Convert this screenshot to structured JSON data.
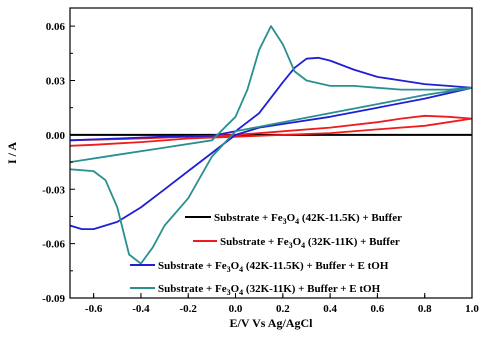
{
  "chart_data": {
    "type": "line",
    "title": "",
    "xlabel": "E/V Vs Ag/AgCl",
    "ylabel": "I / A",
    "xlim": [
      -0.7,
      1.0
    ],
    "ylim": [
      -0.09,
      0.07
    ],
    "grid": false,
    "legend_position": "bottom-right",
    "x_ticks": [
      "-0.6",
      "-0.4",
      "-0.2",
      "0.0",
      "0.2",
      "0.4",
      "0.6",
      "0.8",
      "1.0"
    ],
    "x_tick_values": [
      -0.6,
      -0.4,
      -0.2,
      0.0,
      0.2,
      0.4,
      0.6,
      0.8,
      1.0
    ],
    "y_ticks": [
      "0.06",
      "0.03",
      "0.00",
      "-0.03",
      "-0.06",
      "-0.09"
    ],
    "y_tick_values": [
      0.06,
      0.03,
      0.0,
      -0.03,
      -0.06,
      -0.09
    ],
    "series": [
      {
        "name": "Substrate + Fe3O4 (42K-11.5K) + Buffer",
        "legend": {
          "base": "Substrate + Fe",
          "sub": "3",
          "mid": "O",
          "sub2": "4",
          "tail": " (42K-11.5K) + Buffer"
        },
        "color": "#000000",
        "points": [
          [
            -0.7,
            0.0
          ],
          [
            1.0,
            0.0
          ],
          [
            1.0,
            0.0
          ],
          [
            -0.7,
            0.0
          ]
        ]
      },
      {
        "name": "Substrate + Fe3O4 (32K-11K) + Buffer",
        "legend": {
          "base": "Substrate + Fe",
          "sub": "3",
          "mid": "O",
          "sub2": "4",
          "tail": " (32K-11K) + Buffer"
        },
        "color": "#ee1c1c",
        "points": [
          [
            -0.7,
            -0.003
          ],
          [
            -0.4,
            -0.002
          ],
          [
            -0.2,
            -0.001
          ],
          [
            0.0,
            0.0
          ],
          [
            0.2,
            0.002
          ],
          [
            0.4,
            0.004
          ],
          [
            0.6,
            0.007
          ],
          [
            0.7,
            0.009
          ],
          [
            0.8,
            0.0105
          ],
          [
            0.9,
            0.01
          ],
          [
            1.0,
            0.009
          ],
          [
            0.9,
            0.007
          ],
          [
            0.8,
            0.005
          ],
          [
            0.6,
            0.003
          ],
          [
            0.4,
            0.001
          ],
          [
            0.2,
            0.0
          ],
          [
            0.0,
            -0.001
          ],
          [
            -0.2,
            -0.002
          ],
          [
            -0.4,
            -0.004
          ],
          [
            -0.6,
            -0.0055
          ],
          [
            -0.7,
            -0.006
          ]
        ]
      },
      {
        "name": "Substrate + Fe3O4 (42K-11.5K) + Buffer + EtOH",
        "legend": {
          "base": "Substrate + Fe",
          "sub": "3",
          "mid": "O",
          "sub2": "4",
          "tail": " (42K-11.5K) + Buffer + E tOH"
        },
        "color": "#1f1fd6",
        "points": [
          [
            -0.7,
            -0.003
          ],
          [
            -0.5,
            -0.002
          ],
          [
            -0.3,
            -0.001
          ],
          [
            -0.1,
            -0.0005
          ],
          [
            0.0,
            0.002
          ],
          [
            0.1,
            0.012
          ],
          [
            0.2,
            0.029
          ],
          [
            0.25,
            0.037
          ],
          [
            0.3,
            0.042
          ],
          [
            0.35,
            0.0425
          ],
          [
            0.4,
            0.041
          ],
          [
            0.5,
            0.036
          ],
          [
            0.6,
            0.032
          ],
          [
            0.7,
            0.03
          ],
          [
            0.8,
            0.028
          ],
          [
            0.9,
            0.027
          ],
          [
            1.0,
            0.026
          ],
          [
            0.8,
            0.02
          ],
          [
            0.6,
            0.015
          ],
          [
            0.4,
            0.01
          ],
          [
            0.2,
            0.006
          ],
          [
            0.1,
            0.004
          ],
          [
            0.0,
            0.0
          ],
          [
            -0.05,
            -0.005
          ],
          [
            -0.1,
            -0.01
          ],
          [
            -0.2,
            -0.02
          ],
          [
            -0.3,
            -0.03
          ],
          [
            -0.4,
            -0.04
          ],
          [
            -0.5,
            -0.048
          ],
          [
            -0.6,
            -0.052
          ],
          [
            -0.65,
            -0.052
          ],
          [
            -0.7,
            -0.05
          ]
        ]
      },
      {
        "name": "Substrate + Fe3O4 (32K-11K) + Buffer + EtOH",
        "legend": {
          "base": "Substrate + Fe",
          "sub": "3",
          "mid": "O",
          "sub2": "4",
          "tail": " (32K-11K) + Buffer + E tOH"
        },
        "color": "#2a8f8f",
        "points": [
          [
            -0.7,
            -0.015
          ],
          [
            -0.5,
            -0.011
          ],
          [
            -0.3,
            -0.007
          ],
          [
            -0.1,
            -0.003
          ],
          [
            0.0,
            0.01
          ],
          [
            0.05,
            0.025
          ],
          [
            0.1,
            0.047
          ],
          [
            0.15,
            0.06
          ],
          [
            0.2,
            0.05
          ],
          [
            0.25,
            0.035
          ],
          [
            0.3,
            0.03
          ],
          [
            0.4,
            0.027
          ],
          [
            0.5,
            0.027
          ],
          [
            0.6,
            0.026
          ],
          [
            0.7,
            0.025
          ],
          [
            0.8,
            0.025
          ],
          [
            0.9,
            0.025
          ],
          [
            1.0,
            0.026
          ],
          [
            0.8,
            0.022
          ],
          [
            0.6,
            0.017
          ],
          [
            0.4,
            0.012
          ],
          [
            0.2,
            0.007
          ],
          [
            0.0,
            0.002
          ],
          [
            -0.1,
            -0.012
          ],
          [
            -0.2,
            -0.035
          ],
          [
            -0.3,
            -0.05
          ],
          [
            -0.35,
            -0.062
          ],
          [
            -0.4,
            -0.071
          ],
          [
            -0.45,
            -0.066
          ],
          [
            -0.5,
            -0.04
          ],
          [
            -0.55,
            -0.025
          ],
          [
            -0.6,
            -0.02
          ],
          [
            -0.7,
            -0.019
          ]
        ]
      }
    ]
  }
}
